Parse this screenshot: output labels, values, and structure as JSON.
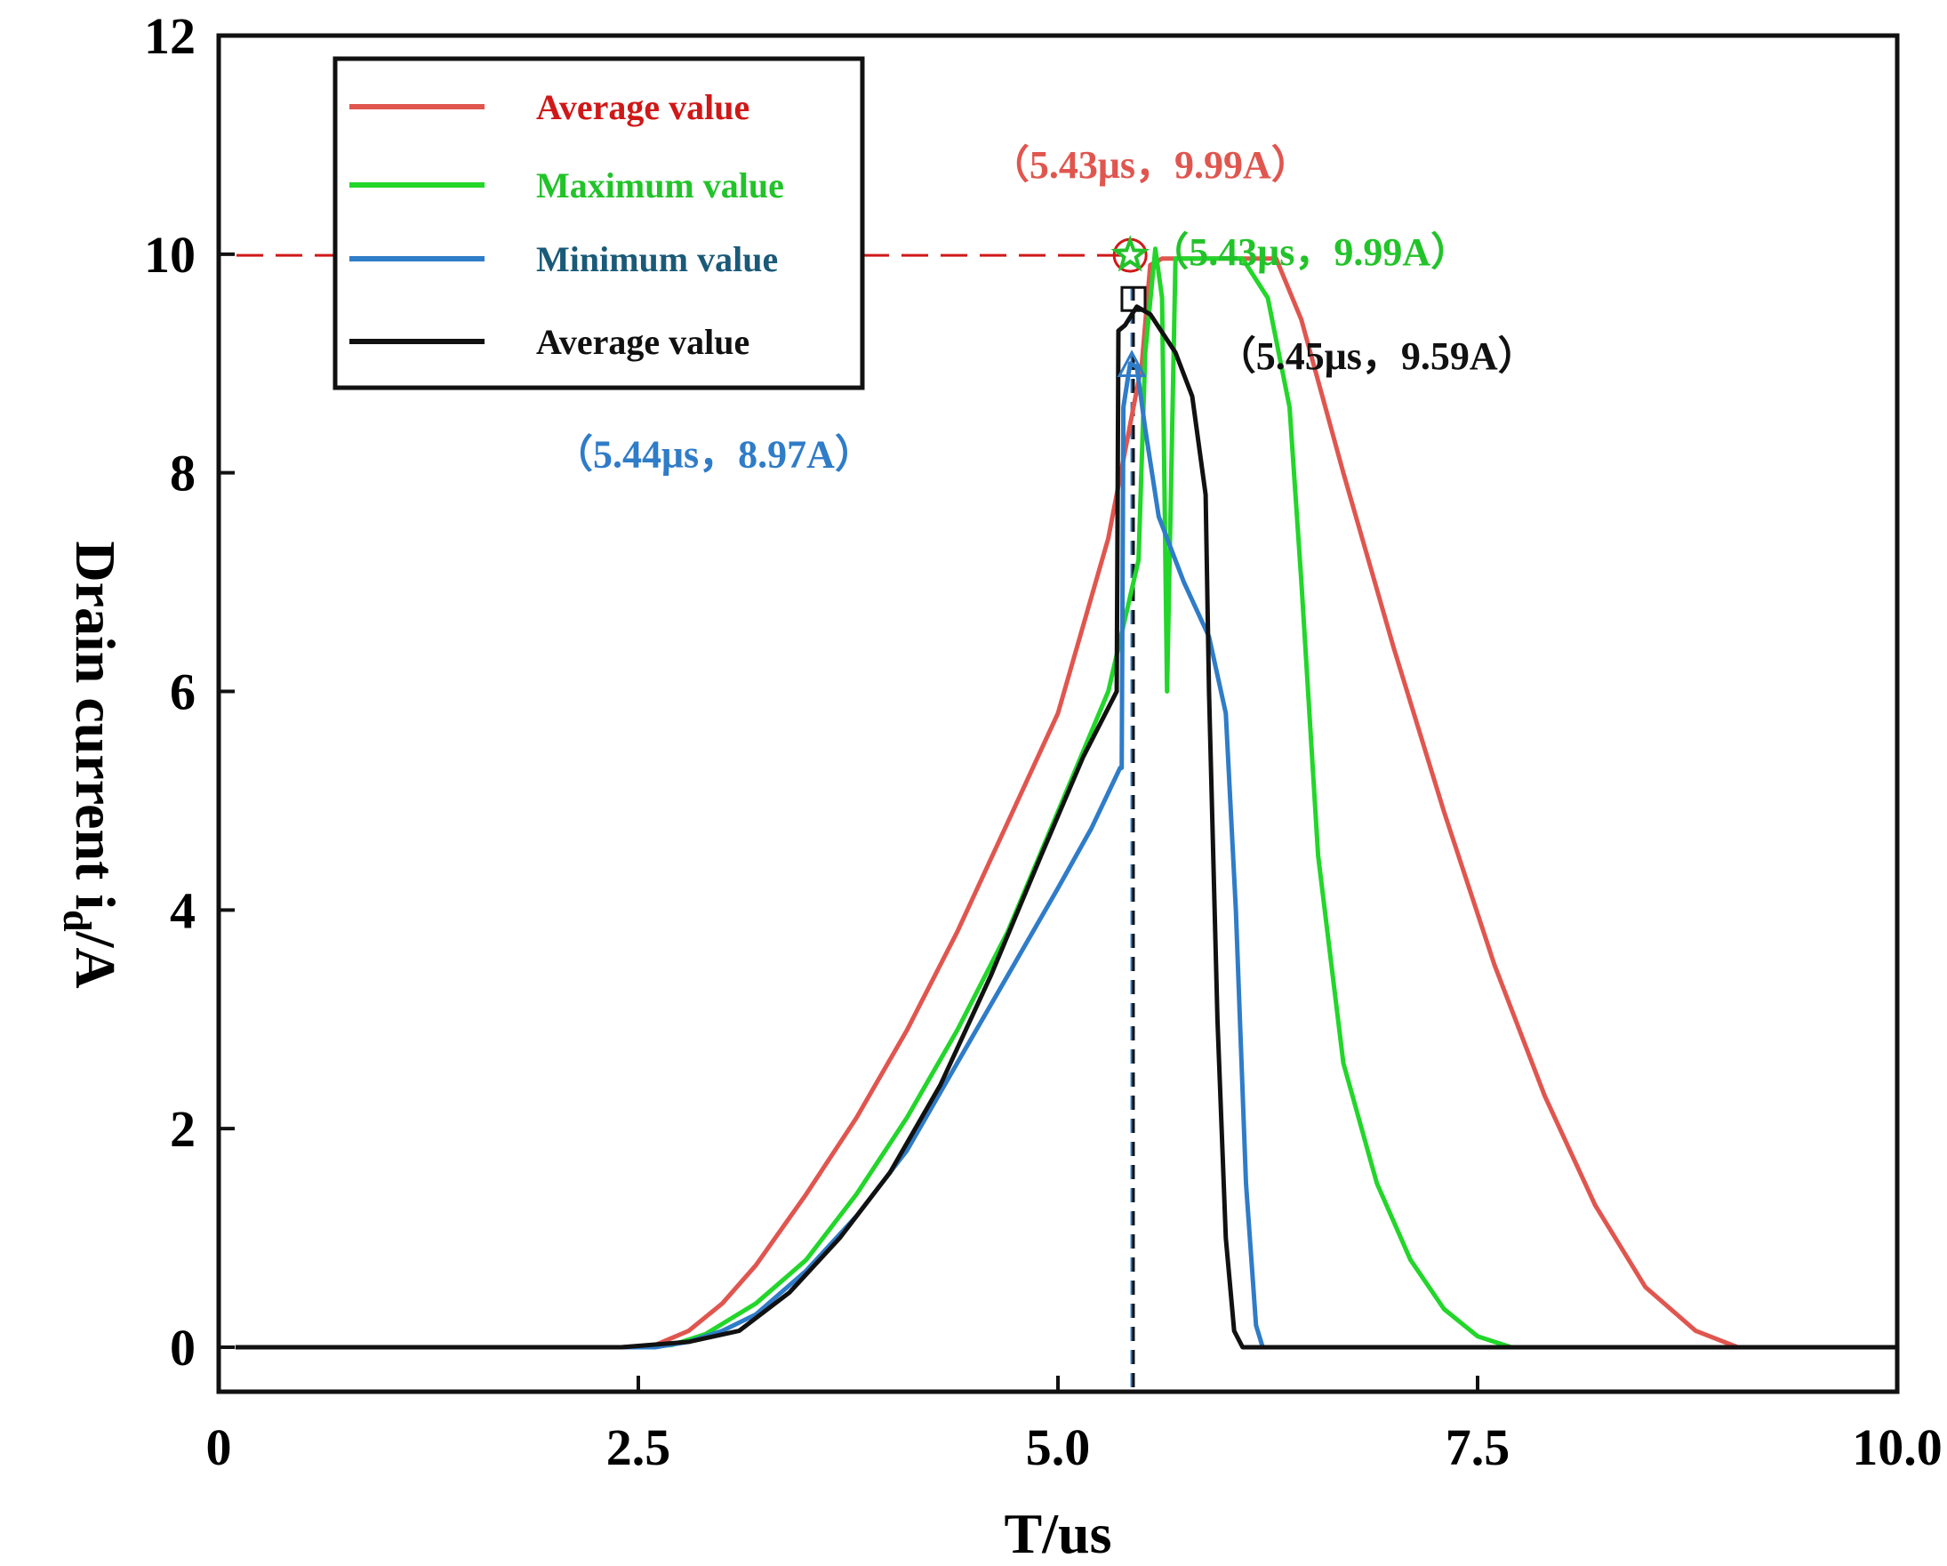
{
  "chart_data": {
    "type": "line",
    "title": "",
    "xlabel": "T/us",
    "ylabel_main": "Drain current  i",
    "ylabel_sub": "d",
    "ylabel_end": "/A",
    "xlim": [
      0,
      10
    ],
    "ylim": [
      0,
      12
    ],
    "x_ticks": [
      0,
      2.5,
      5.0,
      7.5,
      10.0
    ],
    "x_tick_labels": [
      "0",
      "2.5",
      "5.0",
      "7.5",
      "10.0"
    ],
    "y_ticks": [
      0,
      2,
      4,
      6,
      8,
      10,
      12
    ],
    "y_tick_labels": [
      "0",
      "2",
      "4",
      "6",
      "8",
      "10",
      "12"
    ],
    "grid": false,
    "legend_position": "top-left",
    "series": [
      {
        "name": "Average value",
        "color": "#e0564f",
        "legend_text_color": "#d01818",
        "points": [
          [
            0.1,
            0
          ],
          [
            2.4,
            0
          ],
          [
            2.6,
            0.02
          ],
          [
            2.8,
            0.15
          ],
          [
            3.0,
            0.4
          ],
          [
            3.2,
            0.75
          ],
          [
            3.5,
            1.4
          ],
          [
            3.8,
            2.1
          ],
          [
            4.1,
            2.9
          ],
          [
            4.4,
            3.8
          ],
          [
            4.7,
            4.8
          ],
          [
            5.0,
            5.8
          ],
          [
            5.3,
            7.4
          ],
          [
            5.5,
            9.0
          ],
          [
            5.55,
            9.9
          ],
          [
            5.62,
            9.96
          ],
          [
            6.0,
            9.96
          ],
          [
            6.3,
            9.96
          ],
          [
            6.45,
            9.4
          ],
          [
            6.7,
            8.0
          ],
          [
            7.0,
            6.4
          ],
          [
            7.3,
            4.9
          ],
          [
            7.6,
            3.5
          ],
          [
            7.9,
            2.3
          ],
          [
            8.2,
            1.3
          ],
          [
            8.5,
            0.55
          ],
          [
            8.8,
            0.15
          ],
          [
            9.05,
            0
          ],
          [
            10.0,
            0
          ]
        ]
      },
      {
        "name": "Maximum value",
        "color": "#22d62a",
        "legend_text_color": "#22c32a",
        "points": [
          [
            0.1,
            0
          ],
          [
            2.5,
            0
          ],
          [
            2.7,
            0.02
          ],
          [
            2.9,
            0.12
          ],
          [
            3.2,
            0.4
          ],
          [
            3.5,
            0.8
          ],
          [
            3.8,
            1.4
          ],
          [
            4.1,
            2.1
          ],
          [
            4.4,
            2.9
          ],
          [
            4.7,
            3.8
          ],
          [
            5.0,
            4.9
          ],
          [
            5.3,
            6.0
          ],
          [
            5.48,
            7.2
          ],
          [
            5.52,
            9.1
          ],
          [
            5.58,
            10.05
          ],
          [
            5.62,
            9.6
          ],
          [
            5.65,
            6.0
          ],
          [
            5.7,
            9.96
          ],
          [
            6.1,
            9.96
          ],
          [
            6.25,
            9.6
          ],
          [
            6.38,
            8.6
          ],
          [
            6.45,
            7.0
          ],
          [
            6.55,
            4.5
          ],
          [
            6.7,
            2.6
          ],
          [
            6.9,
            1.5
          ],
          [
            7.1,
            0.8
          ],
          [
            7.3,
            0.35
          ],
          [
            7.5,
            0.1
          ],
          [
            7.7,
            0
          ],
          [
            10.0,
            0
          ]
        ]
      },
      {
        "name": "Minimum value",
        "color": "#2f7cc8",
        "legend_text_color": "#1a5a78",
        "points": [
          [
            0.1,
            0
          ],
          [
            2.6,
            0
          ],
          [
            2.8,
            0.05
          ],
          [
            3.0,
            0.15
          ],
          [
            3.2,
            0.3
          ],
          [
            3.5,
            0.7
          ],
          [
            3.8,
            1.2
          ],
          [
            4.1,
            1.8
          ],
          [
            4.4,
            2.6
          ],
          [
            4.7,
            3.4
          ],
          [
            5.0,
            4.2
          ],
          [
            5.2,
            4.75
          ],
          [
            5.37,
            5.3
          ],
          [
            5.38,
            5.3
          ],
          [
            5.39,
            8.6
          ],
          [
            5.43,
            9.0
          ],
          [
            5.47,
            8.97
          ],
          [
            5.52,
            8.4
          ],
          [
            5.6,
            7.6
          ],
          [
            5.75,
            7.0
          ],
          [
            5.9,
            6.5
          ],
          [
            6.0,
            5.8
          ],
          [
            6.06,
            4.0
          ],
          [
            6.12,
            1.5
          ],
          [
            6.18,
            0.2
          ],
          [
            6.22,
            0
          ],
          [
            10.0,
            0
          ]
        ]
      },
      {
        "name": "Average value",
        "color": "#111111",
        "legend_text_color": "#111111",
        "points": [
          [
            0.1,
            0
          ],
          [
            2.4,
            0
          ],
          [
            2.8,
            0.05
          ],
          [
            3.1,
            0.15
          ],
          [
            3.4,
            0.5
          ],
          [
            3.7,
            1.0
          ],
          [
            4.0,
            1.6
          ],
          [
            4.3,
            2.4
          ],
          [
            4.6,
            3.4
          ],
          [
            4.9,
            4.5
          ],
          [
            5.15,
            5.4
          ],
          [
            5.35,
            6.0
          ],
          [
            5.36,
            9.3
          ],
          [
            5.4,
            9.35
          ],
          [
            5.47,
            9.52
          ],
          [
            5.55,
            9.45
          ],
          [
            5.7,
            9.1
          ],
          [
            5.8,
            8.7
          ],
          [
            5.88,
            7.8
          ],
          [
            5.9,
            6.0
          ],
          [
            5.95,
            3.0
          ],
          [
            6.0,
            1.0
          ],
          [
            6.05,
            0.15
          ],
          [
            6.1,
            0
          ],
          [
            10.0,
            0
          ]
        ]
      }
    ],
    "reference_line": {
      "y": 9.99,
      "x_end": 5.4,
      "color": "#d01818"
    },
    "vertical_lines": [
      {
        "x": 5.44,
        "color": "#2f7cc8"
      },
      {
        "x": 5.45,
        "color": "#111111"
      }
    ],
    "markers": [
      {
        "shape": "circle",
        "x": 5.43,
        "y": 9.99,
        "color": "#d01818"
      },
      {
        "shape": "star",
        "x": 5.43,
        "y": 9.99,
        "color": "#22c32a"
      },
      {
        "shape": "square",
        "x": 5.45,
        "y": 9.59,
        "color": "#111111"
      },
      {
        "shape": "triangle",
        "x": 5.44,
        "y": 8.97,
        "color": "#2f7cc8"
      }
    ],
    "annotations": [
      {
        "text": "（5.43μs，9.99A）",
        "x": 5.55,
        "y": 10.7,
        "color": "#e0564f"
      },
      {
        "text": "（5.43μs，9.99A）",
        "x": 6.5,
        "y": 9.9,
        "color": "#22c32a"
      },
      {
        "text": "（5.45μs，9.59A）",
        "x": 6.9,
        "y": 8.95,
        "color": "#111111"
      },
      {
        "text": "（5.44μs，8.97A）",
        "x": 2.95,
        "y": 8.05,
        "color": "#2f7cc8"
      }
    ]
  }
}
